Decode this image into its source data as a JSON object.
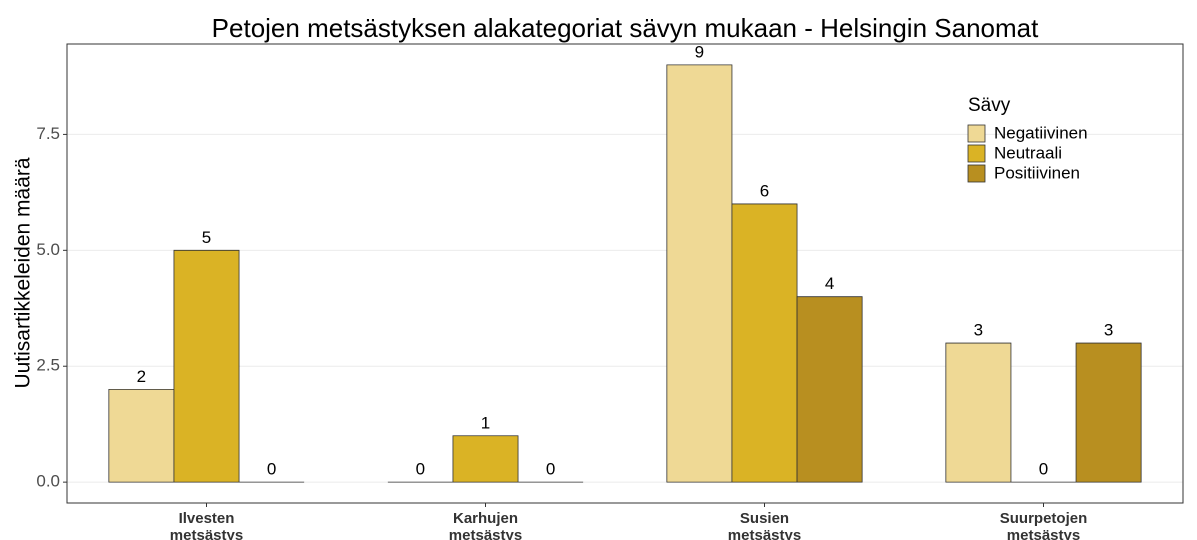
{
  "chart_data": {
    "type": "bar",
    "title": "Petojen metsästyksen alakategoriat sävyn mukaan - Helsingin Sanomat",
    "y_label": "Uutisartikkeleiden määrä",
    "categories": [
      "Ilvesten metsästys",
      "Karhujen metsästys",
      "Susien metsästys",
      "Suurpetojen metsästys"
    ],
    "legend_title": "Sävy",
    "series": [
      {
        "name": "Negatiivinen",
        "color": "#efd995",
        "values": [
          2,
          0,
          9,
          3
        ]
      },
      {
        "name": "Neutraali",
        "color": "#dab325",
        "values": [
          5,
          1,
          6,
          0
        ]
      },
      {
        "name": "Positiivinen",
        "color": "#b88f20",
        "values": [
          0,
          0,
          4,
          3
        ]
      }
    ],
    "ylim": [
      -0.45,
      9.45
    ],
    "yticks": [
      {
        "value": 0,
        "label": "0.0"
      },
      2.5,
      {
        "value": 5,
        "label": "5.0"
      },
      7.5
    ],
    "grid": true
  }
}
